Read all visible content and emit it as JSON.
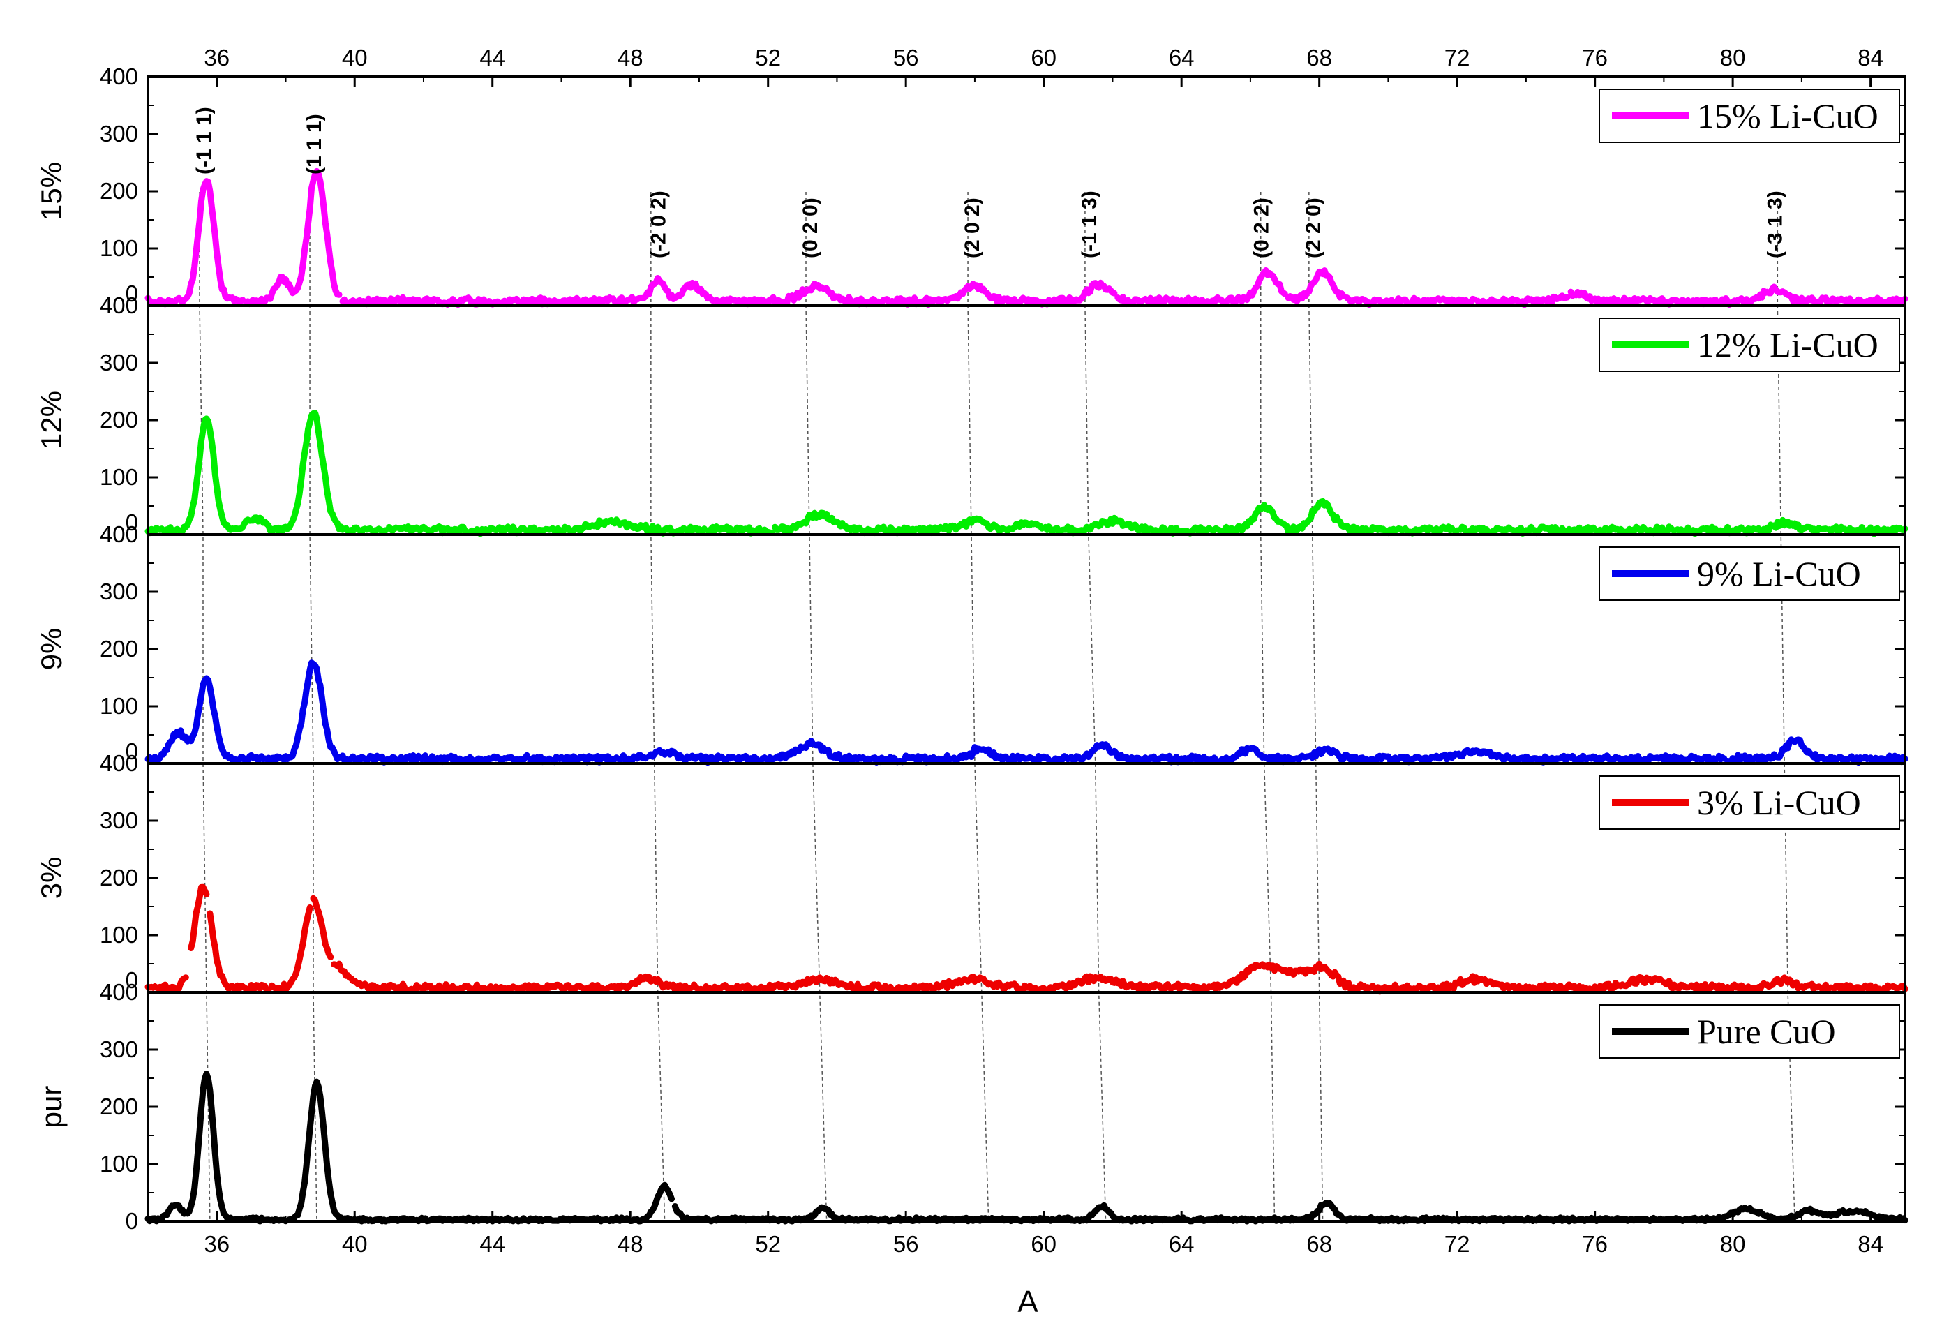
{
  "chart_data": {
    "type": "line",
    "xlabel": "A",
    "xlim": [
      34,
      85
    ],
    "ylim": [
      0,
      400
    ],
    "x_ticks": [
      36,
      40,
      44,
      48,
      52,
      56,
      60,
      64,
      68,
      72,
      76,
      80,
      84
    ],
    "y_ticks": [
      0,
      100,
      200,
      300,
      400
    ],
    "colors": {
      "15%": "#ff00ff",
      "12%": "#00ee00",
      "9%": "#0000ee",
      "3%": "#ee0000",
      "pur": "#000000"
    },
    "panels": [
      {
        "key": "15%",
        "ylabel": "15%",
        "legend": "15% Li-CuO",
        "color": "#ff00ff",
        "peaks": [
          [
            35.7,
            215,
            0.22
          ],
          [
            38.9,
            230,
            0.25
          ],
          [
            37.9,
            40,
            0.2
          ],
          [
            48.8,
            38,
            0.2
          ],
          [
            49.8,
            30,
            0.25
          ],
          [
            53.4,
            25,
            0.4
          ],
          [
            58.0,
            28,
            0.3
          ],
          [
            61.6,
            30,
            0.3
          ],
          [
            66.5,
            48,
            0.3
          ],
          [
            68.1,
            50,
            0.3
          ],
          [
            75.4,
            15,
            0.3
          ],
          [
            81.2,
            20,
            0.3
          ]
        ],
        "baseline": 8
      },
      {
        "key": "12%",
        "ylabel": "12%",
        "legend": "12% Li-CuO",
        "color": "#00ee00",
        "peaks": [
          [
            35.7,
            195,
            0.22
          ],
          [
            38.8,
            205,
            0.27
          ],
          [
            37.1,
            20,
            0.25
          ],
          [
            47.5,
            15,
            0.5
          ],
          [
            53.5,
            28,
            0.4
          ],
          [
            58.0,
            15,
            0.4
          ],
          [
            59.5,
            12,
            0.3
          ],
          [
            62.0,
            15,
            0.4
          ],
          [
            66.4,
            40,
            0.3
          ],
          [
            68.1,
            45,
            0.3
          ],
          [
            81.5,
            12,
            0.3
          ]
        ],
        "baseline": 8
      },
      {
        "key": "9%",
        "ylabel": "9%",
        "legend": "9% Li-CuO",
        "color": "#0000ee",
        "peaks": [
          [
            35.7,
            140,
            0.22
          ],
          [
            38.8,
            170,
            0.25
          ],
          [
            34.9,
            45,
            0.25
          ],
          [
            49.0,
            12,
            0.3
          ],
          [
            53.2,
            25,
            0.4
          ],
          [
            58.2,
            20,
            0.25
          ],
          [
            61.7,
            25,
            0.25
          ],
          [
            66.0,
            18,
            0.25
          ],
          [
            68.2,
            15,
            0.25
          ],
          [
            72.5,
            12,
            0.5
          ],
          [
            81.8,
            35,
            0.25
          ]
        ],
        "baseline": 8
      },
      {
        "key": "3%",
        "ylabel": "3%",
        "legend": "3% Li-CuO",
        "color": "#ee0000",
        "peaks": [
          [
            35.6,
            175,
            0.25
          ],
          [
            38.8,
            148,
            0.27
          ],
          [
            39.5,
            35,
            0.3
          ],
          [
            48.5,
            15,
            0.3
          ],
          [
            53.5,
            15,
            0.5
          ],
          [
            58.0,
            15,
            0.5
          ],
          [
            61.6,
            18,
            0.5
          ],
          [
            66.3,
            38,
            0.5
          ],
          [
            67.5,
            25,
            0.5
          ],
          [
            68.2,
            25,
            0.3
          ],
          [
            72.5,
            15,
            0.4
          ],
          [
            77.5,
            15,
            0.5
          ],
          [
            81.5,
            12,
            0.3
          ]
        ],
        "baseline": 8
      },
      {
        "key": "pur",
        "ylabel": "pur",
        "legend": "Pure CuO",
        "color": "#000000",
        "peaks": [
          [
            35.7,
            255,
            0.2
          ],
          [
            38.9,
            238,
            0.22
          ],
          [
            34.8,
            25,
            0.2
          ],
          [
            49.0,
            58,
            0.22
          ],
          [
            53.6,
            20,
            0.2
          ],
          [
            61.7,
            22,
            0.2
          ],
          [
            68.2,
            30,
            0.22
          ],
          [
            80.4,
            18,
            0.4
          ],
          [
            82.2,
            15,
            0.3
          ],
          [
            83.5,
            15,
            0.5
          ]
        ],
        "baseline": 3
      }
    ],
    "annotations": [
      {
        "label": "(-1 1 1)",
        "x": 35.6
      },
      {
        "label": "(1 1 1)",
        "x": 38.8
      },
      {
        "label": "(-2 0 2)",
        "x": 48.8
      },
      {
        "label": "(0 2 0)",
        "x": 53.2
      },
      {
        "label": "(2 0 2)",
        "x": 57.9
      },
      {
        "label": "(-1 1 3)",
        "x": 61.3
      },
      {
        "label": "(0 2 2)",
        "x": 66.3
      },
      {
        "label": "(2 2 0)",
        "x": 67.8
      },
      {
        "label": "(-3 1 3)",
        "x": 81.2
      }
    ],
    "guide_lines": [
      [
        35.5,
        35.6,
        35.6,
        35.7,
        35.8
      ],
      [
        38.7,
        38.7,
        38.8,
        38.8,
        38.9
      ],
      [
        48.6,
        48.6,
        48.7,
        48.8,
        49.0
      ],
      [
        53.1,
        53.2,
        53.3,
        53.5,
        53.7
      ],
      [
        57.8,
        57.9,
        58.0,
        58.2,
        58.4
      ],
      [
        61.2,
        61.3,
        61.5,
        61.6,
        61.8
      ],
      [
        66.3,
        66.3,
        66.4,
        66.6,
        66.7
      ],
      [
        67.7,
        67.8,
        67.9,
        68.0,
        68.1
      ],
      [
        81.3,
        81.4,
        81.5,
        81.6,
        81.8
      ]
    ]
  }
}
